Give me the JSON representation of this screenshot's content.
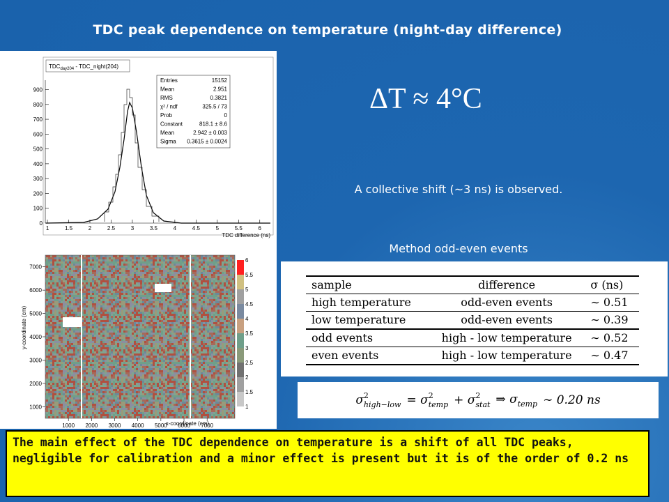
{
  "title": "TDC peak dependence on temperature (night-day difference)",
  "histogram": {
    "title_parts": [
      "TDC",
      "day204",
      " - TDC_night(204)"
    ],
    "xlabel": "TDC difference (ns)",
    "xlim": [
      0.95,
      6.25
    ],
    "xticks": [
      1,
      1.5,
      2,
      2.5,
      3,
      3.5,
      4,
      4.5,
      5,
      5.5,
      6
    ],
    "ylim": [
      0,
      940
    ],
    "yticks": [
      0,
      100,
      200,
      300,
      400,
      500,
      600,
      700,
      800,
      900
    ],
    "stats": [
      [
        "Entries",
        "15152"
      ],
      [
        "Mean",
        "2.951"
      ],
      [
        "RMS",
        "0.3821"
      ],
      [
        "χ² / ndf",
        "325.5 / 73"
      ],
      [
        "Prob",
        "0"
      ],
      [
        "Constant",
        "818.1 ± 8.6"
      ],
      [
        "Mean",
        "2.942 ± 0.003"
      ],
      [
        "Sigma",
        "0.3615 ± 0.0024"
      ]
    ]
  },
  "map": {
    "xlabel": "x-coordinate (cm)",
    "ylabel": "y-coordinate (cm)",
    "xlim": [
      0,
      8200
    ],
    "xticks": [
      1000,
      2000,
      3000,
      4000,
      5000,
      6000,
      7000
    ],
    "ylim": [
      500,
      7500
    ],
    "yticks": [
      1000,
      2000,
      3000,
      4000,
      5000,
      6000,
      7000
    ],
    "zlim": [
      1,
      6
    ],
    "zticks": [
      1,
      1.5,
      2,
      2.5,
      3,
      3.5,
      4,
      4.5,
      5,
      5.5,
      6
    ]
  },
  "delta_t": "ΔT ≈ 4°C",
  "note1": "A collective shift (~3 ns) is observed.",
  "note2": "Method odd-even events",
  "table": {
    "header": [
      "sample",
      "difference",
      "σ (ns)"
    ],
    "rows": [
      [
        "high temperature",
        "odd-even events",
        "∼ 0.51"
      ],
      [
        "low temperature",
        "odd-even events",
        "∼ 0.39"
      ],
      [
        "odd events",
        "high - low temperature",
        "∼ 0.52"
      ],
      [
        "even events",
        "high - low temperature",
        "∼ 0.47"
      ]
    ]
  },
  "formula": [
    [
      "σ",
      "high−low",
      "2"
    ],
    [
      "= σ",
      "temp",
      "2"
    ],
    [
      "+ σ",
      "stat",
      "2"
    ],
    [
      "⇒  σ",
      "temp",
      ""
    ],
    [
      "∼ 0.20 ns",
      "",
      ""
    ]
  ],
  "conclusion": "The main effect of the TDC dependence on temperature is a shift of all TDC peaks, negligible for calibration and a minor effect is present  but it is of the order of 0.2 ns"
}
